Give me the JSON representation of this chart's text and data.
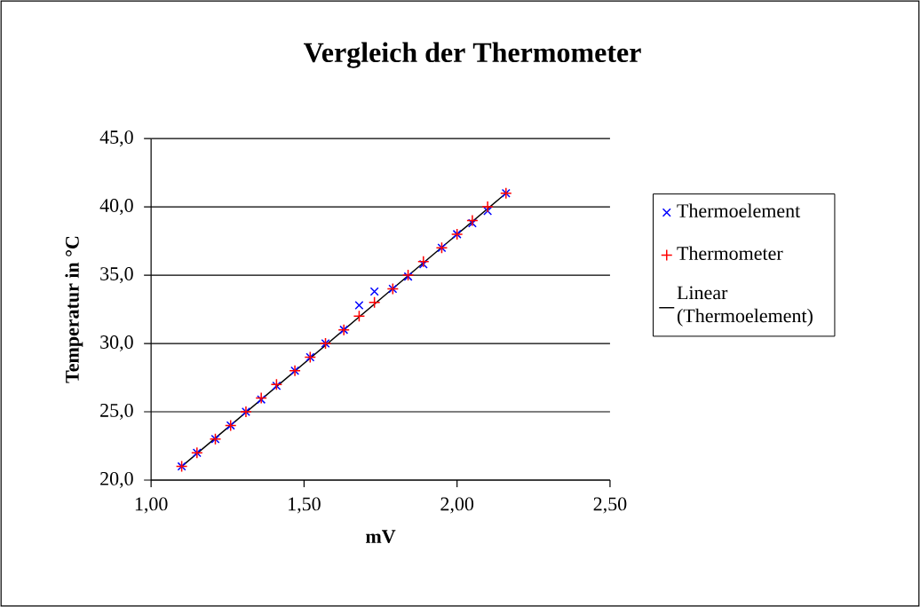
{
  "chart_data": {
    "type": "scatter",
    "title": "Vergleich der Thermometer",
    "xlabel": "mV",
    "ylabel": "Temperatur in °C",
    "xlim": [
      1.0,
      2.5
    ],
    "xticks": [
      {
        "value": 1.0,
        "label": "1,00"
      },
      {
        "value": 1.5,
        "label": "1,50"
      },
      {
        "value": 2.0,
        "label": "2,00"
      },
      {
        "value": 2.5,
        "label": "2,50"
      }
    ],
    "ylim": [
      20,
      45
    ],
    "yticks": [
      {
        "value": 20,
        "label": "20,0"
      },
      {
        "value": 25,
        "label": "25,0"
      },
      {
        "value": 30,
        "label": "30,0"
      },
      {
        "value": 35,
        "label": "35,0"
      },
      {
        "value": 40,
        "label": "40,0"
      },
      {
        "value": 45,
        "label": "45,0"
      }
    ],
    "grid": "y",
    "legend": "right",
    "x": [
      1.1,
      1.15,
      1.21,
      1.26,
      1.31,
      1.36,
      1.41,
      1.47,
      1.52,
      1.57,
      1.63,
      1.68,
      1.73,
      1.79,
      1.84,
      1.89,
      1.95,
      2.0,
      2.05,
      2.1,
      2.16
    ],
    "series": [
      {
        "name": "Thermoelement",
        "color": "#0000ff",
        "marker": "cross",
        "values": [
          21.0,
          22.0,
          23.0,
          24.0,
          25.0,
          25.9,
          26.9,
          28.0,
          29.0,
          30.0,
          31.0,
          32.8,
          33.8,
          34.0,
          34.9,
          35.8,
          37.0,
          38.0,
          38.8,
          39.7,
          41.0
        ]
      },
      {
        "name": "Thermometer",
        "color": "#ff0000",
        "marker": "plus",
        "values": [
          21,
          22,
          23,
          24,
          25,
          26,
          27,
          28,
          29,
          30,
          31,
          32,
          33,
          34,
          35,
          36,
          37,
          38,
          39,
          40,
          41
        ]
      },
      {
        "name": "Linear (Thermoelement)",
        "type": "line",
        "color": "#000000",
        "x": [
          1.1,
          2.16
        ],
        "values": [
          21.0,
          41.0
        ]
      }
    ]
  }
}
